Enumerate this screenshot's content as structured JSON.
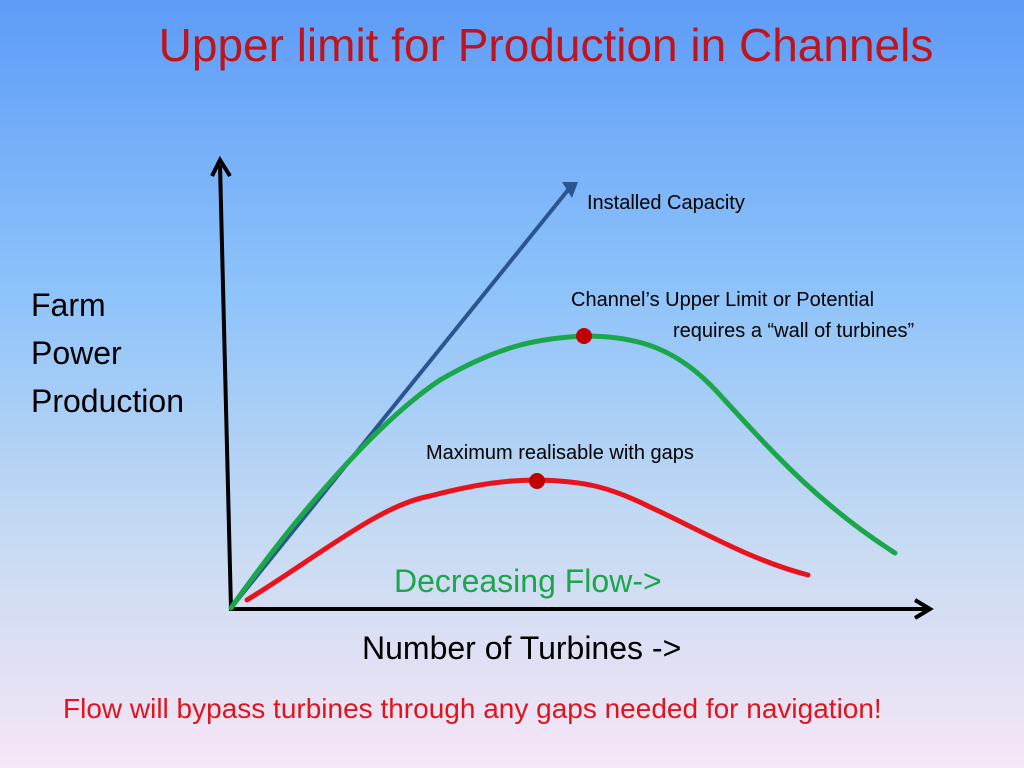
{
  "title": "Upper limit for Production in Channels",
  "y_axis_label": [
    "Farm",
    "Power",
    "Production"
  ],
  "x_axis_label": "Number of Turbines ->",
  "annotations": {
    "installed_capacity": "Installed Capacity",
    "channel_upper_limit_line1": "Channel’s Upper Limit or Potential",
    "channel_upper_limit_line2": "requires a “wall of turbines”",
    "max_with_gaps": "Maximum realisable with gaps",
    "decreasing_flow": "Decreasing Flow->"
  },
  "footer_note": "Flow will bypass turbines through any gaps needed for navigation!",
  "colors": {
    "title": "#c0141d",
    "installed_capacity_line": "#2a5590",
    "channel_potential_curve": "#1aa64a",
    "gaps_curve": "#e8141d",
    "max_point": "#c00000",
    "decreasing_flow_text": "#1aa64a",
    "footer_text": "#e0141d",
    "axes": "#000000"
  }
}
